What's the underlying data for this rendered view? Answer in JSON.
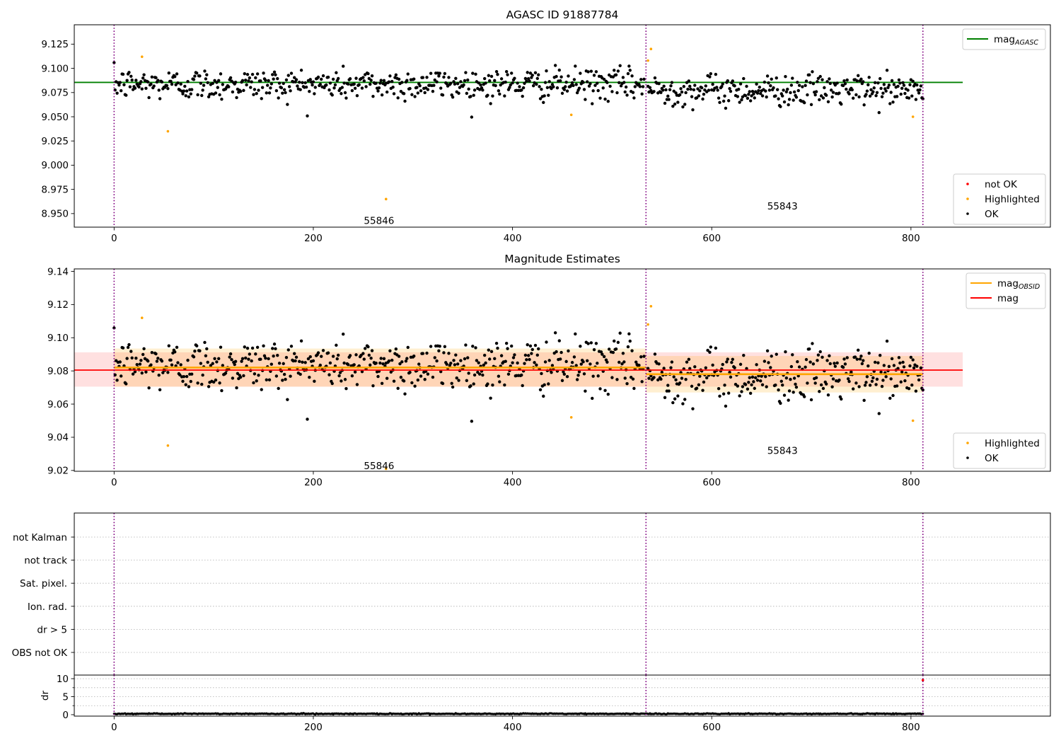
{
  "chart_data": [
    {
      "type": "scatter",
      "title": "AGASC ID 91887784",
      "xlabel": "",
      "ylabel": "",
      "xlim": [
        -40,
        940
      ],
      "ylim": [
        8.936,
        9.145
      ],
      "x_ticks": [
        0,
        200,
        400,
        600,
        800
      ],
      "y_ticks": [
        8.95,
        8.975,
        9.0,
        9.025,
        9.05,
        9.075,
        9.1,
        9.125
      ],
      "y_tick_labels": [
        "8.950",
        "8.975",
        "9.000",
        "9.025",
        "9.050",
        "9.075",
        "9.100",
        "9.125"
      ],
      "grid": false,
      "obsid_boundaries": [
        0,
        534,
        812
      ],
      "obsid_labels": [
        {
          "text": "55846",
          "x": 266,
          "y": 8.943
        },
        {
          "text": "55843",
          "x": 671,
          "y": 8.958
        }
      ],
      "reference_line": {
        "name": "mag_AGASC",
        "y": 9.0855,
        "x_range": [
          -40,
          852
        ],
        "color": "#008000"
      },
      "series": [
        {
          "name": "OK",
          "color": "#000000",
          "marker_size": 2.2,
          "segments": [
            {
              "x_start": 0,
              "x_end": 532,
              "mean": 9.0835,
              "scatter": 0.0095
            },
            {
              "x_start": 536,
              "x_end": 812,
              "mean": 9.0775,
              "scatter": 0.0095
            }
          ]
        },
        {
          "name": "Highlighted",
          "color": "#ffa500",
          "marker_size": 1.8,
          "points": [
            {
              "x": 28,
              "y": 9.112
            },
            {
              "x": 54,
              "y": 9.035
            },
            {
              "x": 273,
              "y": 8.965
            },
            {
              "x": 459,
              "y": 9.052
            },
            {
              "x": 536,
              "y": 9.108
            },
            {
              "x": 539,
              "y": 9.12
            },
            {
              "x": 802,
              "y": 9.05
            }
          ]
        },
        {
          "name": "not OK",
          "color": "#ff0000",
          "marker_size": 1.8,
          "points": []
        }
      ],
      "legends": [
        {
          "position": "upper-right",
          "entries": [
            {
              "label": "mag",
              "subscript": "AGASC",
              "style": "line",
              "color": "#008000"
            }
          ]
        },
        {
          "position": "lower-right",
          "entries": [
            {
              "label": "not OK",
              "style": "dot",
              "color": "#ff0000"
            },
            {
              "label": "Highlighted",
              "style": "dot",
              "color": "#ffa500"
            },
            {
              "label": "OK",
              "style": "dot",
              "color": "#000000"
            }
          ]
        }
      ]
    },
    {
      "type": "scatter",
      "title": "Magnitude Estimates",
      "xlabel": "",
      "ylabel": "",
      "xlim": [
        -40,
        940
      ],
      "ylim": [
        9.0195,
        9.1415
      ],
      "x_ticks": [
        0,
        200,
        400,
        600,
        800
      ],
      "y_ticks": [
        9.02,
        9.04,
        9.06,
        9.08,
        9.1,
        9.12,
        9.14
      ],
      "y_tick_labels": [
        "9.02",
        "9.04",
        "9.06",
        "9.08",
        "9.10",
        "9.12",
        "9.14"
      ],
      "grid": false,
      "obsid_boundaries": [
        0,
        534,
        812
      ],
      "obsid_labels": [
        {
          "text": "55846",
          "x": 266,
          "y": 9.023
        },
        {
          "text": "55843",
          "x": 671,
          "y": 9.032
        }
      ],
      "mag_line": {
        "name": "mag",
        "y": 9.0805,
        "band": [
          9.0705,
          9.0912
        ],
        "x_range": [
          -40,
          852
        ],
        "color": "#ff0000"
      },
      "obsid_mag": [
        {
          "x_range": [
            0,
            534
          ],
          "y": 9.082,
          "band": [
            9.0705,
            9.0935
          ]
        },
        {
          "x_range": [
            534,
            812
          ],
          "y": 9.078,
          "band": [
            9.067,
            9.089
          ]
        }
      ],
      "series": [
        {
          "name": "OK",
          "color": "#000000",
          "marker_size": 2.2,
          "segments": [
            {
              "x_start": 0,
              "x_end": 532,
              "mean": 9.0835,
              "scatter": 0.0095
            },
            {
              "x_start": 536,
              "x_end": 812,
              "mean": 9.0775,
              "scatter": 0.0095
            }
          ]
        },
        {
          "name": "Highlighted",
          "color": "#ffa500",
          "marker_size": 1.8,
          "points": [
            {
              "x": 28,
              "y": 9.112
            },
            {
              "x": 54,
              "y": 9.035
            },
            {
              "x": 273,
              "y": 9.021
            },
            {
              "x": 459,
              "y": 9.052
            },
            {
              "x": 536,
              "y": 9.108
            },
            {
              "x": 539,
              "y": 9.119
            },
            {
              "x": 802,
              "y": 9.05
            }
          ]
        }
      ],
      "legends": [
        {
          "position": "upper-right",
          "entries": [
            {
              "label": "mag",
              "subscript": "OBSID",
              "style": "line",
              "color": "#ffa500"
            },
            {
              "label": "mag",
              "subscript": "",
              "style": "line",
              "color": "#ff0000"
            }
          ]
        },
        {
          "position": "lower-right",
          "entries": [
            {
              "label": "Highlighted",
              "style": "dot",
              "color": "#ffa500"
            },
            {
              "label": "OK",
              "style": "dot",
              "color": "#000000"
            }
          ]
        }
      ]
    },
    {
      "type": "scatter",
      "title": "",
      "xlim": [
        -40,
        940
      ],
      "categories": [
        "not Kalman",
        "not track",
        "Sat. pixel.",
        "Ion. rad.",
        "dr > 5",
        "OBS not OK"
      ],
      "grid": true,
      "obsid_boundaries": [
        0,
        534,
        812
      ],
      "series": []
    },
    {
      "type": "scatter",
      "title": "",
      "xlabel": "",
      "ylabel": "dr",
      "xlim": [
        -40,
        940
      ],
      "ylim": [
        -0.4,
        11
      ],
      "x_ticks": [
        0,
        200,
        400,
        600,
        800
      ],
      "y_ticks": [
        0,
        5,
        10
      ],
      "grid": true,
      "obsid_boundaries": [
        0,
        534,
        812
      ],
      "series": [
        {
          "name": "dr",
          "color": "#000000",
          "marker_size": 1.6,
          "segments": [
            {
              "x_start": 0,
              "x_end": 812,
              "mean": 0.25,
              "scatter": 0.08
            }
          ]
        },
        {
          "name": "dr outlier",
          "color": "#ff0000",
          "marker_size": 1.8,
          "points": [
            {
              "x": 812,
              "y": 9.6
            }
          ]
        }
      ]
    }
  ]
}
